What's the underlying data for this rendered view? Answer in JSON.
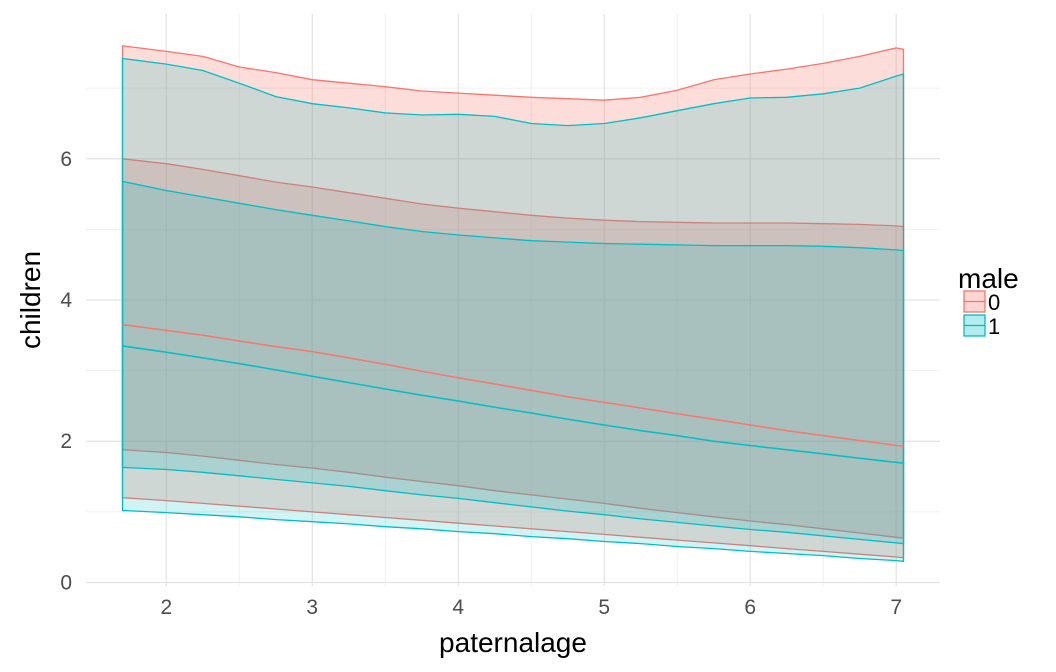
{
  "chart_data": {
    "type": "area",
    "xlabel": "paternalage",
    "ylabel": "children",
    "xlim": [
      1.45,
      7.3
    ],
    "ylim": [
      -0.05,
      8.05
    ],
    "x_ticks": [
      2,
      3,
      4,
      5,
      6,
      7
    ],
    "y_ticks": [
      0,
      2,
      4,
      6
    ],
    "grid": true,
    "legend": {
      "title": "male",
      "position": "right",
      "entries": [
        "0",
        "1"
      ]
    },
    "x": [
      1.7,
      2.0,
      2.25,
      2.5,
      2.75,
      3.0,
      3.25,
      3.5,
      3.75,
      4.0,
      4.25,
      4.5,
      4.75,
      5.0,
      5.25,
      5.5,
      5.75,
      6.0,
      6.25,
      6.5,
      6.75,
      7.0,
      7.05
    ],
    "series": [
      {
        "name": "0",
        "color": "#F8766D",
        "bands": [
          {
            "lower": [
              1.2,
              1.16,
              1.12,
              1.08,
              1.04,
              1.0,
              0.96,
              0.92,
              0.88,
              0.84,
              0.8,
              0.76,
              0.72,
              0.68,
              0.64,
              0.6,
              0.56,
              0.52,
              0.48,
              0.44,
              0.4,
              0.36,
              0.35
            ],
            "upper": [
              7.6,
              7.52,
              7.45,
              7.3,
              7.22,
              7.12,
              7.07,
              7.02,
              6.96,
              6.93,
              6.9,
              6.87,
              6.85,
              6.83,
              6.87,
              6.97,
              7.12,
              7.2,
              7.27,
              7.35,
              7.45,
              7.57,
              7.55
            ]
          },
          {
            "lower": [
              1.88,
              1.84,
              1.79,
              1.73,
              1.67,
              1.62,
              1.56,
              1.49,
              1.43,
              1.37,
              1.3,
              1.24,
              1.18,
              1.12,
              1.05,
              0.99,
              0.93,
              0.87,
              0.82,
              0.76,
              0.7,
              0.64,
              0.63
            ],
            "upper": [
              6.0,
              5.93,
              5.85,
              5.76,
              5.67,
              5.6,
              5.52,
              5.44,
              5.36,
              5.3,
              5.25,
              5.2,
              5.16,
              5.13,
              5.11,
              5.1,
              5.09,
              5.09,
              5.09,
              5.08,
              5.07,
              5.05,
              5.04
            ]
          }
        ],
        "mean": [
          3.65,
          3.57,
          3.5,
          3.42,
          3.34,
          3.27,
          3.18,
          3.09,
          2.99,
          2.9,
          2.81,
          2.72,
          2.63,
          2.55,
          2.47,
          2.39,
          2.31,
          2.23,
          2.15,
          2.08,
          2.01,
          1.94,
          1.93
        ]
      },
      {
        "name": "1",
        "color": "#00BFC4",
        "bands": [
          {
            "lower": [
              1.02,
              0.99,
              0.96,
              0.93,
              0.89,
              0.86,
              0.83,
              0.79,
              0.76,
              0.72,
              0.69,
              0.65,
              0.62,
              0.58,
              0.55,
              0.51,
              0.48,
              0.44,
              0.41,
              0.38,
              0.34,
              0.31,
              0.3
            ],
            "upper": [
              7.42,
              7.34,
              7.25,
              7.07,
              6.88,
              6.78,
              6.72,
              6.65,
              6.62,
              6.63,
              6.6,
              6.5,
              6.47,
              6.5,
              6.58,
              6.68,
              6.78,
              6.86,
              6.87,
              6.92,
              7.0,
              7.17,
              7.2
            ]
          },
          {
            "lower": [
              1.63,
              1.6,
              1.56,
              1.51,
              1.46,
              1.41,
              1.36,
              1.3,
              1.24,
              1.19,
              1.13,
              1.07,
              1.01,
              0.96,
              0.9,
              0.85,
              0.8,
              0.75,
              0.71,
              0.66,
              0.61,
              0.56,
              0.55
            ],
            "upper": [
              5.68,
              5.55,
              5.46,
              5.37,
              5.28,
              5.2,
              5.12,
              5.04,
              4.97,
              4.92,
              4.88,
              4.84,
              4.82,
              4.8,
              4.79,
              4.78,
              4.77,
              4.77,
              4.77,
              4.76,
              4.74,
              4.71,
              4.7
            ]
          }
        ],
        "mean": [
          3.35,
          3.26,
          3.18,
          3.1,
          3.01,
          2.92,
          2.83,
          2.74,
          2.65,
          2.57,
          2.48,
          2.4,
          2.31,
          2.23,
          2.15,
          2.08,
          2.0,
          1.94,
          1.88,
          1.82,
          1.76,
          1.7,
          1.69
        ]
      }
    ]
  }
}
